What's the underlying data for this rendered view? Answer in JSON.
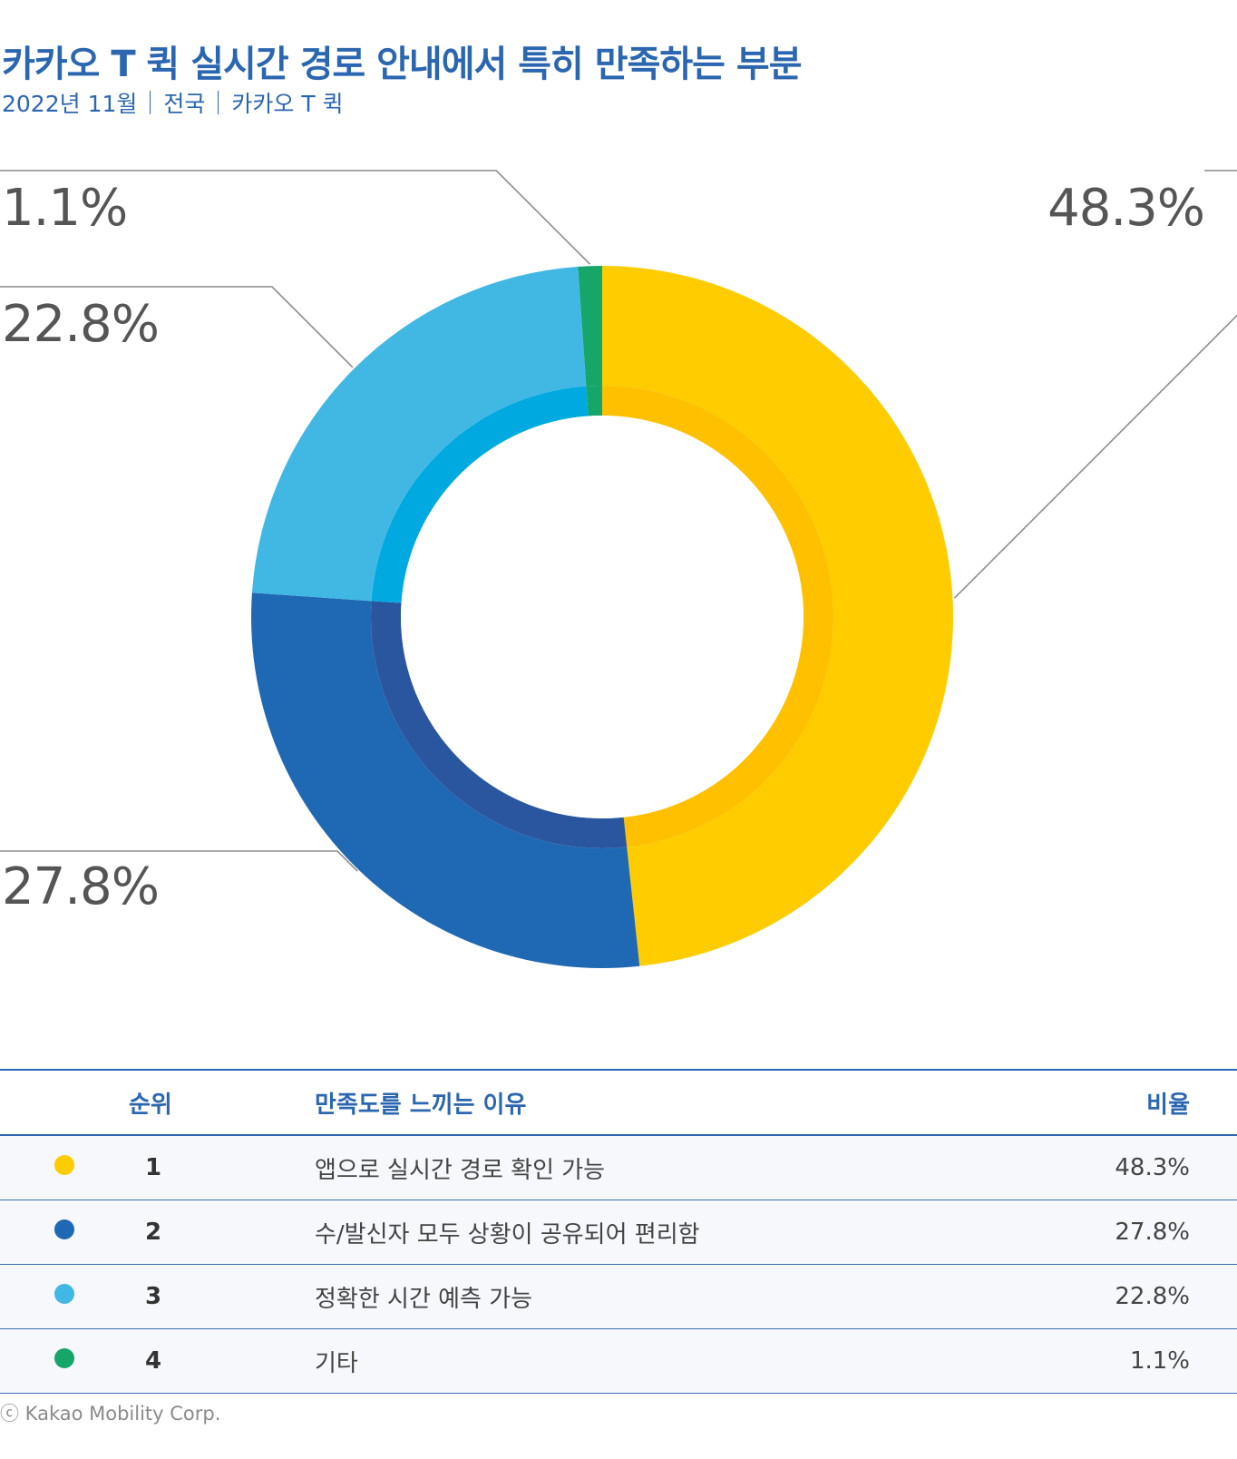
{
  "header": {
    "title": "카카오 T 퀵 실시간 경로 안내에서 특히 만족하는 부분",
    "subtitle_parts": [
      "2022년 11월",
      "전국",
      "카카오 T 퀵"
    ]
  },
  "chart_data": {
    "type": "pie",
    "variant": "donut",
    "series": [
      {
        "name": "앱으로 실시간 경로 확인 가능",
        "value": 48.3,
        "label": "48.3%",
        "color": "#ffcc00",
        "inner_color": "#ffc000"
      },
      {
        "name": "수/발신자 모두 상황이 공유되어 편리함",
        "value": 27.8,
        "label": "27.8%",
        "color": "#1f69b4",
        "inner_color": "#2a56a0"
      },
      {
        "name": "정확한 시간 예측 가능",
        "value": 22.8,
        "label": "22.8%",
        "color": "#41b8e4",
        "inner_color": "#00a9df"
      },
      {
        "name": "기타",
        "value": 1.1,
        "label": "1.1%",
        "color": "#16a66a",
        "inner_color": "#16a66a"
      }
    ]
  },
  "legend_table": {
    "headers": {
      "rank": "순위",
      "reason": "만족도를 느끼는 이유",
      "ratio": "비율"
    },
    "rows": [
      {
        "rank": "1",
        "reason": "앱으로 실시간 경로 확인 가능",
        "ratio": "48.3%",
        "color": "#ffcc00"
      },
      {
        "rank": "2",
        "reason": "수/발신자 모두 상황이 공유되어 편리함",
        "ratio": "27.8%",
        "color": "#1f69b4"
      },
      {
        "rank": "3",
        "reason": "정확한 시간 예측 가능",
        "ratio": "22.8%",
        "color": "#41b8e4"
      },
      {
        "rank": "4",
        "reason": "기타",
        "ratio": "1.1%",
        "color": "#16a66a"
      }
    ]
  },
  "footer": {
    "copyright": "ⓒ Kakao Mobility Corp."
  }
}
